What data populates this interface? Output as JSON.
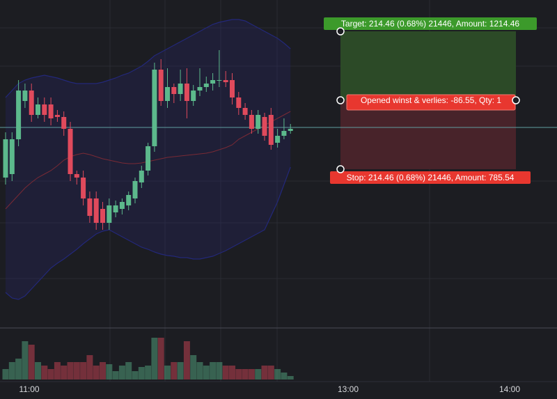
{
  "chart_data": {
    "type": "candlestick",
    "ylim": [
      0,
      470
    ],
    "open": [
      215,
      220,
      270,
      325,
      340,
      305,
      320,
      320,
      305,
      302,
      285,
      220,
      215,
      185,
      185,
      170,
      150,
      165,
      170,
      175,
      185,
      208,
      225,
      260,
      370,
      325,
      345,
      335,
      350,
      325,
      340,
      345,
      350,
      355,
      355,
      355,
      330,
      315,
      305,
      285,
      302,
      305,
      265,
      275,
      282
    ],
    "high": [
      280,
      280,
      355,
      350,
      350,
      330,
      330,
      330,
      312,
      310,
      295,
      225,
      225,
      195,
      195,
      180,
      185,
      182,
      185,
      195,
      215,
      232,
      265,
      380,
      385,
      372,
      350,
      370,
      372,
      348,
      372,
      360,
      365,
      398,
      368,
      365,
      338,
      322,
      312,
      312,
      308,
      315,
      285,
      300,
      292
    ],
    "low": [
      205,
      210,
      260,
      315,
      295,
      300,
      295,
      290,
      295,
      275,
      210,
      205,
      175,
      150,
      140,
      140,
      140,
      158,
      162,
      168,
      178,
      200,
      218,
      252,
      318,
      315,
      322,
      325,
      300,
      318,
      332,
      338,
      340,
      345,
      345,
      320,
      305,
      298,
      278,
      278,
      268,
      255,
      258,
      270,
      278
    ],
    "close": [
      270,
      270,
      340,
      340,
      305,
      320,
      305,
      300,
      302,
      285,
      220,
      215,
      185,
      160,
      150,
      150,
      175,
      175,
      180,
      190,
      210,
      225,
      260,
      370,
      325,
      345,
      335,
      350,
      325,
      340,
      345,
      350,
      355,
      355,
      352,
      330,
      315,
      305,
      285,
      305,
      275,
      262,
      275,
      282,
      285
    ],
    "volume": [
      15,
      25,
      30,
      55,
      50,
      25,
      20,
      15,
      25,
      20,
      25,
      25,
      25,
      35,
      20,
      25,
      22,
      12,
      20,
      25,
      12,
      18,
      20,
      60,
      60,
      20,
      25,
      25,
      55,
      35,
      25,
      20,
      25,
      25,
      20,
      20,
      15,
      15,
      15,
      15,
      20,
      20,
      15,
      10,
      5
    ],
    "volume_lim": [
      0,
      75
    ],
    "band_upper": [
      330,
      340,
      350,
      355,
      358,
      360,
      362,
      360,
      358,
      355,
      352,
      350,
      350,
      350,
      350,
      352,
      355,
      358,
      362,
      365,
      370,
      375,
      382,
      390,
      395,
      400,
      405,
      410,
      415,
      420,
      425,
      430,
      435,
      438,
      440,
      442,
      442,
      440,
      435,
      430,
      425,
      420,
      415,
      408,
      400
    ],
    "band_middle": [
      170,
      180,
      190,
      200,
      208,
      215,
      220,
      225,
      232,
      240,
      245,
      248,
      250,
      248,
      245,
      242,
      240,
      238,
      236,
      235,
      235,
      236,
      238,
      240,
      242,
      244,
      245,
      246,
      247,
      248,
      249,
      250,
      252,
      255,
      258,
      262,
      270,
      275,
      280,
      285,
      290,
      295,
      300,
      305,
      310
    ],
    "band_lower": [
      50,
      42,
      40,
      45,
      55,
      65,
      75,
      85,
      92,
      98,
      105,
      112,
      120,
      127,
      134,
      138,
      140,
      135,
      130,
      125,
      120,
      115,
      112,
      108,
      105,
      103,
      102,
      100,
      100,
      98,
      98,
      100,
      102,
      106,
      110,
      115,
      120,
      125,
      130,
      135,
      140,
      160,
      180,
      205,
      230
    ],
    "last_price": 287,
    "target_level": 425,
    "entry_level": 326,
    "stop_level": 227,
    "target_label": "Target: 214.46 (0.68%) 21446, Amount: 1214.46",
    "pnl_label": "Opened winst & verlies: -86.55, Qty: 1",
    "stop_label": "Stop: 214.46 (0.68%) 21446, Amount: 785.54",
    "time_labels": [
      "11:00",
      "13:00",
      "14:00"
    ],
    "up_color": "#5cb98c",
    "down_color": "#e04a5c"
  }
}
